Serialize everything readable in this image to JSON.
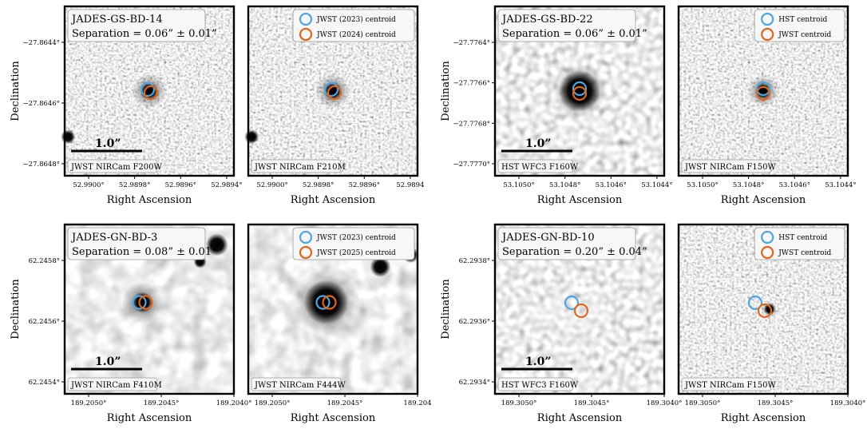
{
  "figure": {
    "panels": [
      {
        "id": "gs-bd-14",
        "title": "JADES-GS-BD-14",
        "separation": "Separation = 0.06” ± 0.01”",
        "ylabel": "Declination",
        "xlabel": "Right Ascension",
        "scale_bar": "1.0”",
        "legend": [
          "JWST (2023) centroid",
          "JWST (2024) centroid"
        ],
        "left_band": "JWST NIRCam F200W",
        "right_band": "JWST NIRCam F210M",
        "y_ticks": [
          "−27.8644°",
          "−27.8646°",
          "−27.8648°"
        ],
        "left_x_ticks": [
          "52.9900°",
          "52.9898°",
          "52.9896°",
          "52.9894°"
        ],
        "right_x_ticks": [
          "52.9900°",
          "52.9898°",
          "52.9896°",
          "52.9894"
        ],
        "bright": false
      },
      {
        "id": "gs-bd-22",
        "title": "JADES-GS-BD-22",
        "separation": "Separation = 0.06” ± 0.01”",
        "ylabel": "Declination",
        "xlabel": "Right Ascension",
        "scale_bar": "1.0”",
        "legend": [
          "HST centroid",
          "JWST centroid"
        ],
        "left_band": "HST WFC3 F160W",
        "right_band": "JWST NIRCam F150W",
        "y_ticks": [
          "−27.7764°",
          "−27.7766°",
          "−27.7768°",
          "−27.7770°"
        ],
        "left_x_ticks": [
          "53.1050°",
          "53.1048°",
          "53.1046°",
          "53.1044°"
        ],
        "right_x_ticks": [
          "53.1050°",
          "53.1048°",
          "53.1046°",
          "53.1044°"
        ],
        "bright": false
      },
      {
        "id": "gn-bd-3",
        "title": "JADES-GN-BD-3",
        "separation": "Separation = 0.08” ± 0.01”",
        "ylabel": "Declination",
        "xlabel": "Right Ascension",
        "scale_bar": "1.0”",
        "legend": [
          "JWST (2023) centroid",
          "JWST (2025) centroid"
        ],
        "left_band": "JWST NIRCam F410M",
        "right_band": "JWST NIRCam F444W",
        "y_ticks": [
          "62.2458°",
          "62.2456°",
          "62.2454°"
        ],
        "left_x_ticks": [
          "189.2050°",
          "189.2045°",
          "189.2040°"
        ],
        "right_x_ticks": [
          "189.2050°",
          "189.2045°",
          "189.204"
        ],
        "bright": true
      },
      {
        "id": "gn-bd-10",
        "title": "JADES-GN-BD-10",
        "separation": "Separation = 0.20” ± 0.04”",
        "ylabel": "Declination",
        "xlabel": "Right Ascension",
        "scale_bar": "1.0”",
        "legend": [
          "HST centroid",
          "JWST centroid"
        ],
        "left_band": "HST WFC3 F160W",
        "right_band": "JWST NIRCam F150W",
        "y_ticks": [
          "62.2938°",
          "62.2936°",
          "62.2934°"
        ],
        "left_x_ticks": [
          "189.3050°",
          "189.3045°",
          "189.3040°"
        ],
        "right_x_ticks": [
          "189.3050°",
          "189.3045°",
          "189.3040°"
        ],
        "bright": false
      }
    ],
    "colors": {
      "first_centroid": "#4da6e0",
      "second_centroid": "#e0661a"
    }
  }
}
